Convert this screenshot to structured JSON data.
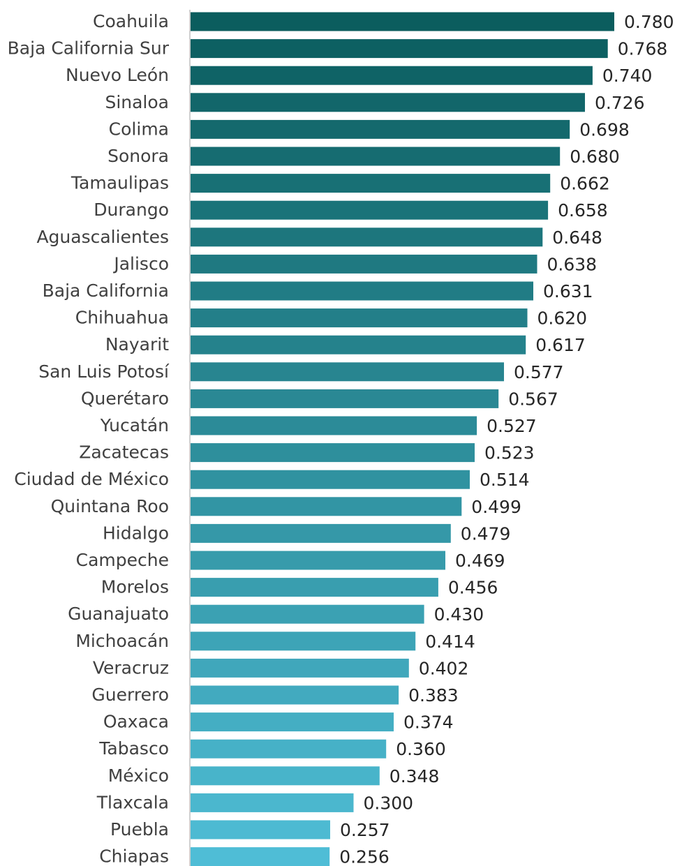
{
  "chart_data": {
    "type": "bar",
    "orientation": "horizontal",
    "title": "",
    "xlabel": "",
    "ylabel": "",
    "xlim": [
      0,
      0.78
    ],
    "grid": false,
    "legend": "none",
    "value_labels": true,
    "color_gradient": {
      "top": "#0b5d5e",
      "bottom": "#4fbdd6"
    },
    "categories": [
      "Coahuila",
      "Baja California Sur",
      "Nuevo León",
      "Sinaloa",
      "Colima",
      "Sonora",
      "Tamaulipas",
      "Durango",
      "Aguascalientes",
      "Jalisco",
      "Baja California",
      "Chihuahua",
      "Nayarit",
      "San Luis Potosí",
      "Querétaro",
      "Yucatán",
      "Zacatecas",
      "Ciudad de México",
      "Quintana Roo",
      "Hidalgo",
      "Campeche",
      "Morelos",
      "Guanajuato",
      "Michoacán",
      "Veracruz",
      "Guerrero",
      "Oaxaca",
      "Tabasco",
      "México",
      "Tlaxcala",
      "Puebla",
      "Chiapas"
    ],
    "values": [
      0.78,
      0.768,
      0.74,
      0.726,
      0.698,
      0.68,
      0.662,
      0.658,
      0.648,
      0.638,
      0.631,
      0.62,
      0.617,
      0.577,
      0.567,
      0.527,
      0.523,
      0.514,
      0.499,
      0.479,
      0.469,
      0.456,
      0.43,
      0.414,
      0.402,
      0.383,
      0.374,
      0.36,
      0.348,
      0.3,
      0.257,
      0.256
    ],
    "value_labels_text": [
      "0.780",
      "0.768",
      "0.740",
      "0.726",
      "0.698",
      "0.680",
      "0.662",
      "0.658",
      "0.648",
      "0.638",
      "0.631",
      "0.620",
      "0.617",
      "0.577",
      "0.567",
      "0.527",
      "0.523",
      "0.514",
      "0.499",
      "0.479",
      "0.469",
      "0.456",
      "0.430",
      "0.414",
      "0.402",
      "0.383",
      "0.374",
      "0.360",
      "0.348",
      "0.300",
      "0.257",
      "0.256"
    ]
  }
}
